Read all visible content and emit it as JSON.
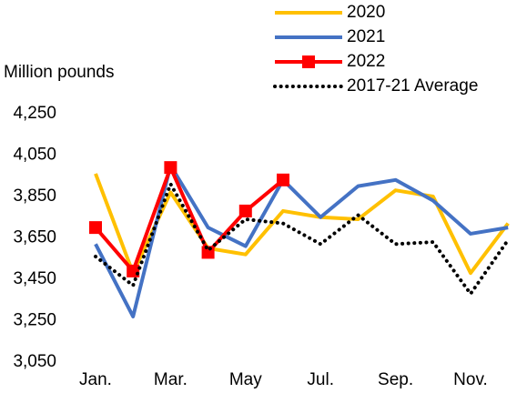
{
  "chart_data": {
    "type": "line",
    "y_label": "Million pounds",
    "categories": [
      "Jan.",
      null,
      "Mar.",
      null,
      "May",
      null,
      "Jul.",
      null,
      "Sep.",
      null,
      "Nov.",
      null
    ],
    "series": [
      {
        "name": "2020",
        "color": "#ffc000",
        "values": [
          3960,
          3480,
          3870,
          3600,
          3570,
          3780,
          3750,
          3740,
          3880,
          3850,
          3480,
          3720
        ]
      },
      {
        "name": "2021",
        "color": "#4472c4",
        "values": [
          3620,
          3270,
          4000,
          3700,
          3610,
          3930,
          3750,
          3900,
          3930,
          3830,
          3670,
          3700
        ]
      },
      {
        "name": "2022",
        "color": "#ff0000",
        "marker": "square",
        "values": [
          3700,
          3490,
          3990,
          3580,
          3780,
          3930,
          null,
          null,
          null,
          null,
          null,
          null
        ]
      },
      {
        "name": "2017-21 Average",
        "color": "#000000",
        "dash": "dotted",
        "values": [
          3560,
          3420,
          3910,
          3590,
          3740,
          3720,
          3620,
          3760,
          3620,
          3630,
          3380,
          3640
        ]
      }
    ],
    "ylim": [
      3050,
      4250
    ],
    "yticks": [
      {
        "value": 3050,
        "label": "3,050"
      },
      {
        "value": 3250,
        "label": "3,250"
      },
      {
        "value": 3450,
        "label": "3,450"
      },
      {
        "value": 3650,
        "label": "3,650"
      },
      {
        "value": 3850,
        "label": "3,850"
      },
      {
        "value": 4050,
        "label": "4,050"
      },
      {
        "value": 4250,
        "label": "4,250"
      }
    ],
    "grid": false
  }
}
